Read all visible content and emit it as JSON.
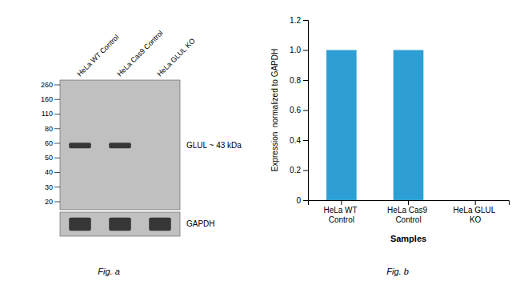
{
  "chart_data": [
    {
      "type": "blot",
      "categories": [
        "HeLa WT Control",
        "HeLa Cas9 Control",
        "HeLa GLUL KO"
      ],
      "yticks": [
        260,
        160,
        110,
        80,
        60,
        50,
        40,
        30,
        20
      ],
      "color": "#c0c0c0",
      "series": [
        {
          "name": "GLUL ~ 43 kDa",
          "color": "#222222",
          "values": [
            1,
            1,
            0
          ]
        },
        {
          "name": "GAPDH",
          "color": "#222222",
          "values": [
            1,
            1,
            1
          ]
        }
      ],
      "annotations": [
        "Fig. a"
      ]
    },
    {
      "type": "bar",
      "categories": [
        "HeLa WT Control",
        "HeLa Cas9 Control",
        "HeLa GLUL KO"
      ],
      "values": [
        1.0,
        1.0,
        0.0
      ],
      "color": "#2e9fd4",
      "xlabel": "Samples",
      "ylabel": "Expression  normalized to GAPDH",
      "ylim": [
        0,
        1.2
      ],
      "yticks": [
        0,
        0.2,
        0.4,
        0.6,
        0.8,
        {
          "value": 1.0,
          "label": "1.0"
        },
        1.2
      ],
      "annotations": [
        "Fig. b"
      ]
    }
  ]
}
